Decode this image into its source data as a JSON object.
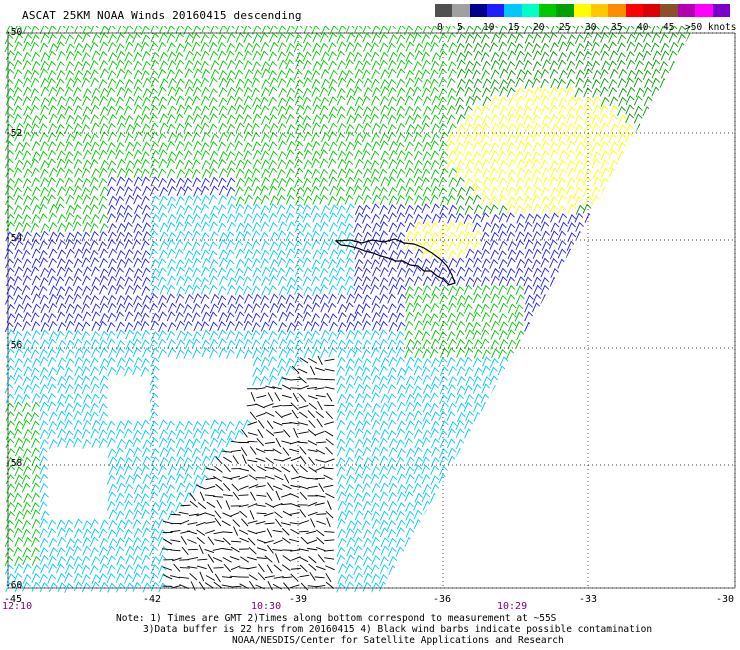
{
  "title": "ASCAT 25KM NOAA Winds 20160415 descending",
  "legend": {
    "colors": [
      "#505050",
      "#a0a0a0",
      "#00008c",
      "#1e1eff",
      "#00c8ff",
      "#00ffc8",
      "#00c800",
      "#00a000",
      "#ffff00",
      "#ffc800",
      "#ff8c00",
      "#ff0000",
      "#dc0000",
      "#8c5028",
      "#b400b4",
      "#ff00ff",
      "#7800c8"
    ],
    "labels": [
      "0",
      "5",
      "10",
      "15",
      "20",
      "25",
      "30",
      "35",
      "40",
      "45",
      ">50 knots"
    ]
  },
  "latitude_labels": [
    "-50",
    "-52",
    "-54",
    "-56",
    "-58",
    "-60"
  ],
  "longitude_labels": [
    "-45",
    "-42",
    "-39",
    "-36",
    "-33",
    "-30"
  ],
  "time_labels": [
    "12:10",
    "10:30",
    "10:29"
  ],
  "notes": [
    "Note: 1) Times are GMT 2)Times along bottom correspond to measurement at ~55S",
    "3)Data buffer is 22 hrs from 20160415 4) Black wind barbs indicate possible contamination",
    "NOAA/NESDIS/Center for Satellite Applications and Research"
  ]
}
